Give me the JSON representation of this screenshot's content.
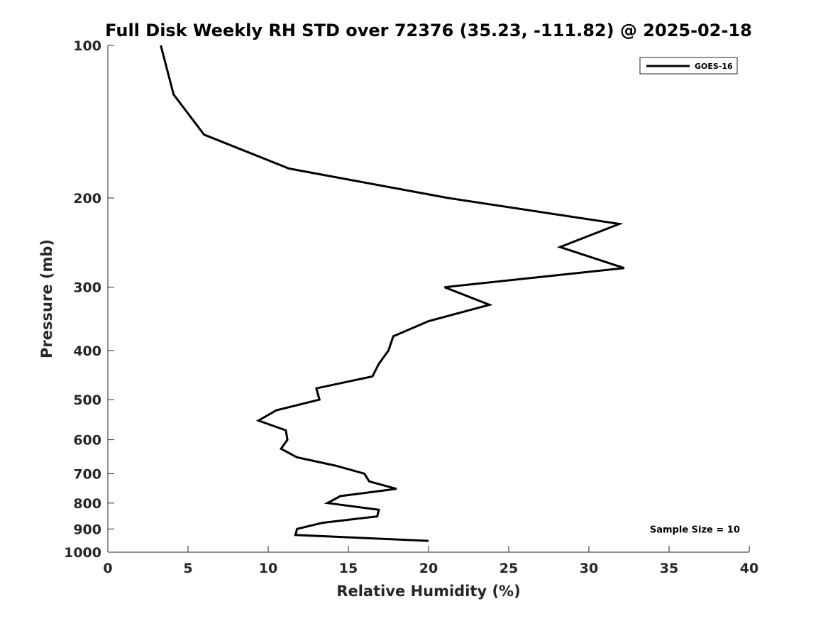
{
  "chart_data": {
    "type": "line",
    "title": "Full Disk Weekly RH STD over 72376 (35.23, -111.82) @ 2025-02-18",
    "xlabel": "Relative Humidity (%)",
    "ylabel": "Pressure (mb)",
    "xlim": [
      0,
      40
    ],
    "ylim": [
      100,
      1000
    ],
    "y_scale": "log",
    "y_inverted": true,
    "x_ticks": [
      0,
      5,
      10,
      15,
      20,
      25,
      30,
      35,
      40
    ],
    "y_ticks": [
      100,
      200,
      300,
      400,
      500,
      600,
      700,
      800,
      900,
      1000
    ],
    "grid": false,
    "legend_position": "top-right",
    "series": [
      {
        "name": "GOES-16",
        "color": "#000000",
        "points": [
          {
            "x": 3.3,
            "p": 100
          },
          {
            "x": 4.1,
            "p": 125
          },
          {
            "x": 6.0,
            "p": 150
          },
          {
            "x": 11.3,
            "p": 175
          },
          {
            "x": 21.2,
            "p": 200
          },
          {
            "x": 31.9,
            "p": 225
          },
          {
            "x": 28.2,
            "p": 250
          },
          {
            "x": 32.2,
            "p": 275
          },
          {
            "x": 21.0,
            "p": 300
          },
          {
            "x": 23.8,
            "p": 325
          },
          {
            "x": 20.0,
            "p": 350
          },
          {
            "x": 17.8,
            "p": 375
          },
          {
            "x": 17.5,
            "p": 400
          },
          {
            "x": 16.9,
            "p": 425
          },
          {
            "x": 16.5,
            "p": 450
          },
          {
            "x": 13.0,
            "p": 475
          },
          {
            "x": 13.2,
            "p": 500
          },
          {
            "x": 10.5,
            "p": 525
          },
          {
            "x": 9.4,
            "p": 550
          },
          {
            "x": 11.1,
            "p": 575
          },
          {
            "x": 11.2,
            "p": 600
          },
          {
            "x": 10.8,
            "p": 625
          },
          {
            "x": 11.8,
            "p": 650
          },
          {
            "x": 14.2,
            "p": 675
          },
          {
            "x": 16.0,
            "p": 700
          },
          {
            "x": 16.3,
            "p": 725
          },
          {
            "x": 18.0,
            "p": 750
          },
          {
            "x": 14.5,
            "p": 775
          },
          {
            "x": 13.7,
            "p": 800
          },
          {
            "x": 16.9,
            "p": 825
          },
          {
            "x": 16.8,
            "p": 850
          },
          {
            "x": 13.4,
            "p": 875
          },
          {
            "x": 11.8,
            "p": 900
          },
          {
            "x": 11.7,
            "p": 925
          },
          {
            "x": 20.0,
            "p": 950
          }
        ]
      }
    ],
    "annotations": [
      {
        "text": "Sample Size = 10",
        "x": 33.8,
        "p": 900
      }
    ]
  }
}
